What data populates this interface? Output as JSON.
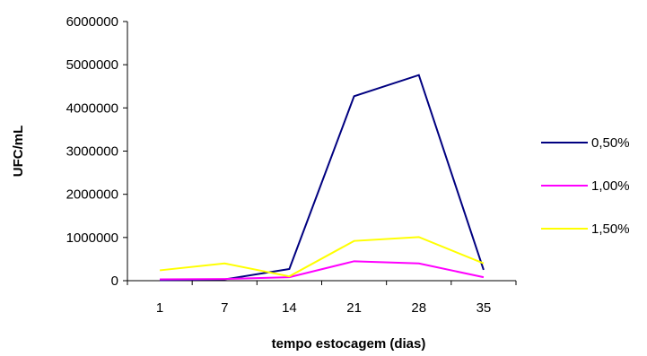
{
  "chart_data": {
    "type": "line",
    "title": "",
    "xlabel": "tempo estocagem (dias)",
    "ylabel": "UFC/mL",
    "categories": [
      "1",
      "7",
      "14",
      "21",
      "28",
      "35"
    ],
    "ylim": [
      0,
      6000000
    ],
    "yticks": [
      0,
      1000000,
      2000000,
      3000000,
      4000000,
      5000000,
      6000000
    ],
    "ytick_labels": [
      "0",
      "1000000",
      "2000000",
      "3000000",
      "4000000",
      "5000000",
      "6000000"
    ],
    "grid": false,
    "legend_position": "right",
    "series": [
      {
        "name": "0,50%",
        "color": "#000080",
        "values": [
          10000,
          30000,
          270000,
          4270000,
          4760000,
          250000
        ]
      },
      {
        "name": "1,00%",
        "color": "#FF00FF",
        "values": [
          30000,
          40000,
          80000,
          450000,
          400000,
          80000
        ]
      },
      {
        "name": "1,50%",
        "color": "#FFFF00",
        "values": [
          240000,
          400000,
          100000,
          920000,
          1010000,
          400000
        ]
      }
    ]
  }
}
